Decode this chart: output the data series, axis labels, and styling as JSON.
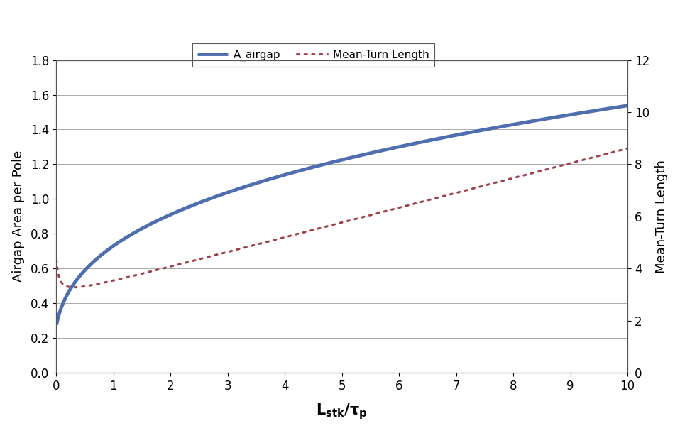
{
  "ylabel_left": "Airgap Area per Pole",
  "ylabel_right": "Mean-Turn Length",
  "legend_label_1": "A_airgap",
  "legend_label_2": "Mean-Turn Length",
  "xlim": [
    0,
    10
  ],
  "ylim_left": [
    0,
    1.8
  ],
  "ylim_right": [
    0,
    12
  ],
  "xticks": [
    0,
    1,
    2,
    3,
    4,
    5,
    6,
    7,
    8,
    9,
    10
  ],
  "yticks_left": [
    0,
    0.2,
    0.4,
    0.6,
    0.8,
    1.0,
    1.2,
    1.4,
    1.6,
    1.8
  ],
  "yticks_right": [
    0,
    2,
    4,
    6,
    8,
    10,
    12
  ],
  "line1_color": "#4F6EAF",
  "line1_linewidth": 3.5,
  "line2_color": "#A0414A",
  "line2_linewidth": 2.2,
  "background_color": "#FFFFFF",
  "plot_bg_color": "#FFFFFF",
  "grid_color": "#AAAAAA",
  "grid_linewidth": 0.7,
  "font_size_axis_label": 13,
  "font_size_tick": 12,
  "font_size_legend": 11,
  "airgap_a": 0.718,
  "airgap_b": 0.05,
  "airgap_n": 0.33,
  "mtl_a": 0.07,
  "mtl_b": 0.044,
  "mtl_c": 0.57,
  "mtl_d": 2.9,
  "figwidth": 9.58,
  "figheight": 6.1,
  "dpi": 100
}
